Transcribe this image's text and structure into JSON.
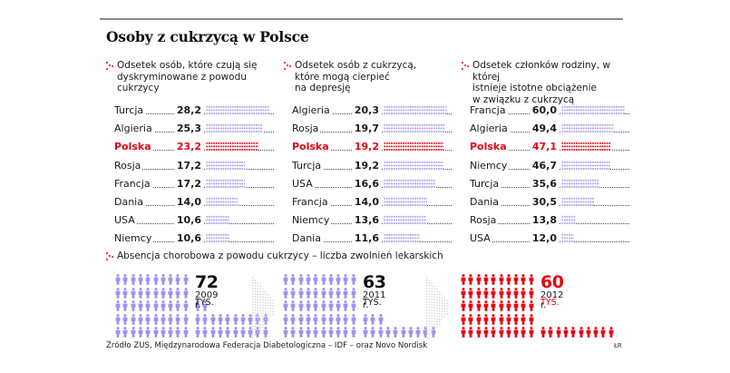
{
  "title": "Osoby z cukrzycą w Polsce",
  "chart_data": [
    {
      "type": "bar",
      "title": "Odsetek osób, które czują się dyskryminowane z powodu cukrzycy",
      "unit": "%",
      "highlight": "Polska",
      "categories": [
        "Turcja",
        "Algieria",
        "Polska",
        "Rosja",
        "Francja",
        "Dania",
        "USA",
        "Niemcy"
      ],
      "values": [
        28.2,
        25.3,
        23.2,
        17.2,
        17.2,
        14.0,
        10.6,
        10.6
      ],
      "labels": [
        "28,2",
        "25,3",
        "23,2",
        "17,2",
        "17,2",
        "14,0",
        "10,6",
        "10,6"
      ]
    },
    {
      "type": "bar",
      "title": "Odsetek osób z cukrzycą, które mogą cierpieć na depresję",
      "unit": "%",
      "highlight": "Polska",
      "categories": [
        "Algieria",
        "Rosja",
        "Polska",
        "Turcja",
        "USA",
        "Francja",
        "Niemcy",
        "Dania"
      ],
      "values": [
        20.3,
        19.7,
        19.2,
        19.2,
        16.6,
        14.0,
        13.6,
        11.6
      ],
      "labels": [
        "20,3",
        "19,7",
        "19,2",
        "19,2",
        "16,6",
        "14,0",
        "13,6",
        "11,6"
      ]
    },
    {
      "type": "bar",
      "title": "Odsetek członków rodziny, w której istnieje istotne obciążenie w związku z cukrzycą",
      "unit": "%",
      "highlight": "Polska",
      "categories": [
        "Francja",
        "Algieria",
        "Polska",
        "Niemcy",
        "Turcja",
        "Dania",
        "Rosja",
        "USA"
      ],
      "values": [
        60.0,
        49.4,
        47.1,
        46.7,
        35.6,
        30.5,
        13.8,
        12.0
      ],
      "labels": [
        "60,0",
        "49,4",
        "47,1",
        "46,7",
        "35,6",
        "30,5",
        "13,8",
        "12,0"
      ]
    },
    {
      "type": "bar",
      "title": "Absencja chorobowa z powodu cukrzycy – liczba zwolnień lekarskich",
      "unit": "tys.",
      "categories": [
        "2009 r.",
        "2011 r.",
        "2012 r."
      ],
      "values": [
        72,
        63,
        60
      ],
      "icon_unit": "1 figure = 1 tys."
    }
  ],
  "panels": [
    {
      "heading": [
        "Odsetek osób, które czują się",
        "dyskryminowane z powodu",
        "cukrzycy"
      ]
    },
    {
      "heading": [
        "Odsetek osób z cukrzycą,",
        "które mogą cierpieć",
        "na depresję"
      ]
    },
    {
      "heading": [
        "Odsetek członków rodziny, w której",
        "istnieje istotne obciążenie",
        "w związku z cukrzycą"
      ]
    }
  ],
  "absence": {
    "heading": "Absencja chorobowa z powodu cukrzycy – liczba zwolnień lekarskich",
    "blocks": [
      {
        "value": "72",
        "unit": "TYS.",
        "year": "2009 r.",
        "count": 72,
        "highlight": false
      },
      {
        "value": "63",
        "unit": "TYS.",
        "year": "2011 r.",
        "count": 63,
        "highlight": false
      },
      {
        "value": "60",
        "unit": "TYS.",
        "year": "2012 r.",
        "count": 60,
        "highlight": true
      }
    ]
  },
  "colors": {
    "accent": "#e30613",
    "series": "#a79ff0",
    "figure": "#9d92ec",
    "arrow": "#d4d4d4"
  },
  "footer": {
    "source": "Źródło ZUS, Międzynarodowa Federacja Diabetologiczna – IDF – oraz Novo Nordisk",
    "logo": "ŁR"
  }
}
